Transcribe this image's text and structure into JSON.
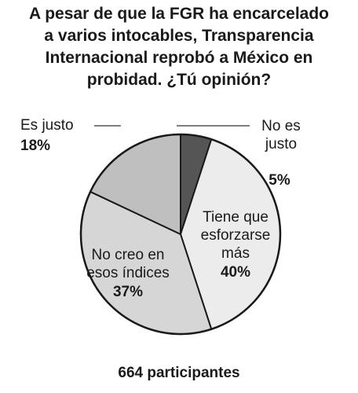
{
  "title_lines": [
    "A pesar de que la FGR ha encarcelado",
    "a varios intocables, Transparencia",
    "Internacional reprobó a México en",
    "probidad. ¿Tú opinión?"
  ],
  "footer": "664 participantes",
  "chart_data": {
    "type": "pie",
    "title": "A pesar de que la FGR ha encarcelado a varios intocables, Transparencia Internacional reprobó a México en probidad. ¿Tú opinión?",
    "slices": [
      {
        "label": [
          "No es",
          "justo"
        ],
        "value": 5,
        "value_label": "5%",
        "color": "#555555"
      },
      {
        "label": [
          "Tiene que",
          "esforzarse",
          "más"
        ],
        "value": 40,
        "value_label": "40%",
        "color": "#ececec"
      },
      {
        "label": [
          "No creo en",
          "esos índices"
        ],
        "value": 37,
        "value_label": "37%",
        "color": "#d6d6d6"
      },
      {
        "label": [
          "Es justo"
        ],
        "value": 18,
        "value_label": "18%",
        "color": "#bfbfbf"
      }
    ],
    "start": "top, clockwise",
    "legend": "none (direct labels)"
  }
}
